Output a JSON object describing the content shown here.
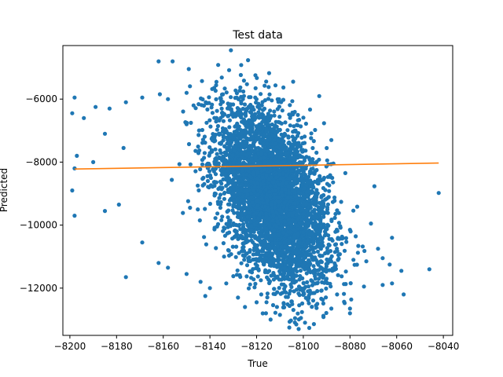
{
  "chart_data": {
    "type": "scatter",
    "title": "Test data",
    "xlabel": "True",
    "ylabel": "Predicted",
    "xlim": [
      -8203,
      -8036
    ],
    "ylim": [
      -13500,
      -4300
    ],
    "xticks": [
      -8200,
      -8180,
      -8160,
      -8140,
      -8120,
      -8100,
      -8080,
      -8060,
      -8040
    ],
    "yticks": [
      -6000,
      -8000,
      -10000,
      -12000
    ],
    "x_tick_labels": [
      "−8200",
      "−8180",
      "−8160",
      "−8140",
      "−8120",
      "−8100",
      "−8080",
      "−8060",
      "−8040"
    ],
    "y_tick_labels": [
      "−6000",
      "−8000",
      "−10000",
      "−12000"
    ],
    "grid": false,
    "series": [
      {
        "kind": "points",
        "color": "#1f77b4",
        "distribution": {
          "count": 4600,
          "x_center": -8113,
          "x_std": 12,
          "y_center": -9100,
          "y_std": 1250,
          "slope_y_per_x": -55
        },
        "points": [
          [
            -8131,
            -4450
          ],
          [
            -8162,
            -4800
          ],
          [
            -8156,
            -4800
          ],
          [
            -8198,
            -5950
          ],
          [
            -8199,
            -6450
          ],
          [
            -8197,
            -7800
          ],
          [
            -8198,
            -8200
          ],
          [
            -8199,
            -8900
          ],
          [
            -8198,
            -9700
          ],
          [
            -8185,
            -9550
          ],
          [
            -8179,
            -9350
          ],
          [
            -8062,
            -10400
          ],
          [
            -8068,
            -10750
          ],
          [
            -8066,
            -11050
          ],
          [
            -8073,
            -11150
          ],
          [
            -8063,
            -11250
          ],
          [
            -8058,
            -11450
          ],
          [
            -8046,
            -11400
          ],
          [
            -8042,
            -8980
          ],
          [
            -8057,
            -12200
          ],
          [
            -8066,
            -11900
          ],
          [
            -8062,
            -11850
          ],
          [
            -8074,
            -11950
          ],
          [
            -8080,
            -12650
          ],
          [
            -8080,
            -12800
          ],
          [
            -8088,
            -12650
          ],
          [
            -8103,
            -13150
          ],
          [
            -8106,
            -13250
          ],
          [
            -8110,
            -12850
          ],
          [
            -8114,
            -13000
          ],
          [
            -8094,
            -12500
          ],
          [
            -8085,
            -10950
          ],
          [
            -8088,
            -7300
          ],
          [
            -8082,
            -8350
          ],
          [
            -8071,
            -9950
          ],
          [
            -8080,
            -10150
          ],
          [
            -8147,
            -6200
          ],
          [
            -8150,
            -5800
          ],
          [
            -8158,
            -6000
          ],
          [
            -8169,
            -5950
          ],
          [
            -8176,
            -6100
          ],
          [
            -8183,
            -6300
          ],
          [
            -8189,
            -6250
          ],
          [
            -8194,
            -6600
          ],
          [
            -8185,
            -7100
          ],
          [
            -8177,
            -7550
          ],
          [
            -8190,
            -8000
          ],
          [
            -8169,
            -10550
          ],
          [
            -8162,
            -11200
          ],
          [
            -8158,
            -11350
          ],
          [
            -8150,
            -11550
          ],
          [
            -8144,
            -11800
          ],
          [
            -8140,
            -12000
          ],
          [
            -8133,
            -11850
          ],
          [
            -8128,
            -12300
          ],
          [
            -8120,
            -12450
          ],
          [
            -8176,
            -11650
          ],
          [
            -8142,
            -12250
          ],
          [
            -8125,
            -12600
          ],
          [
            -8116,
            -12800
          ],
          [
            -8101,
            -12950
          ]
        ]
      },
      {
        "kind": "line",
        "color": "#ff7f0e",
        "x": [
          -8198,
          -8042
        ],
        "y": [
          -8220,
          -8030
        ]
      }
    ]
  }
}
